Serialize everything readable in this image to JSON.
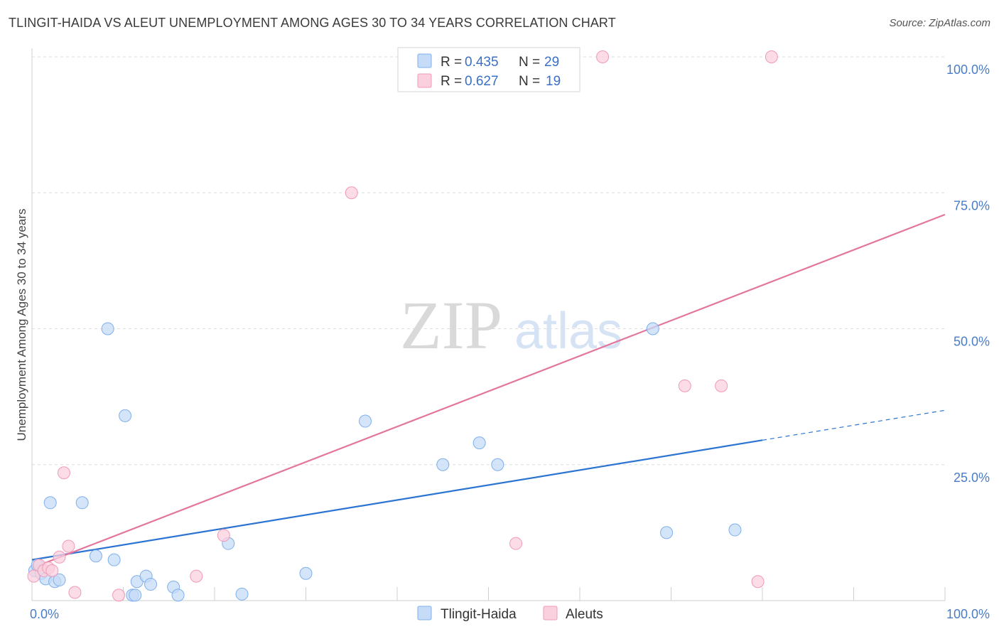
{
  "header": {
    "title": "TLINGIT-HAIDA VS ALEUT UNEMPLOYMENT AMONG AGES 30 TO 34 YEARS CORRELATION CHART",
    "source": "Source: ZipAtlas.com"
  },
  "watermark": {
    "zip": "ZIP",
    "atlas": "atlas"
  },
  "chart_data": {
    "type": "scatter",
    "title": "TLINGIT-HAIDA VS ALEUT UNEMPLOYMENT AMONG AGES 30 TO 34 YEARS CORRELATION CHART",
    "xlabel": "",
    "ylabel": "Unemployment Among Ages 30 to 34 years",
    "xlim": [
      0,
      100
    ],
    "ylim": [
      0,
      100
    ],
    "x_tick_labels": [
      {
        "value": 0,
        "label": "0.0%"
      },
      {
        "value": 100,
        "label": "100.0%"
      }
    ],
    "y_tick_labels": [
      {
        "value": 25,
        "label": "25.0%"
      },
      {
        "value": 50,
        "label": "50.0%"
      },
      {
        "value": 75,
        "label": "75.0%"
      },
      {
        "value": 100,
        "label": "100.0%"
      }
    ],
    "grid": true,
    "legend_position": "top-center",
    "series": [
      {
        "name": "Tlingit-Haida",
        "color": "#7fb0ea",
        "fill": "#c5dbf7",
        "line_color": "#2b74d1",
        "r_label": "R =",
        "r_value": "0.435",
        "n_label": "N =",
        "n_value": "29",
        "trend": {
          "x0": 0,
          "y0": 7.5,
          "x1": 80,
          "y1": 29.5,
          "dash_to_x": 100,
          "dash_to_y": 35
        },
        "points": [
          [
            0.3,
            5.5
          ],
          [
            0.6,
            6.5
          ],
          [
            1.0,
            5.0
          ],
          [
            1.5,
            4.0
          ],
          [
            2.0,
            18.0
          ],
          [
            2.5,
            3.5
          ],
          [
            3.0,
            3.8
          ],
          [
            5.5,
            18.0
          ],
          [
            7.0,
            8.2
          ],
          [
            8.3,
            50.0
          ],
          [
            9.0,
            7.5
          ],
          [
            10.2,
            34.0
          ],
          [
            11.0,
            1.0
          ],
          [
            11.3,
            1.0
          ],
          [
            11.5,
            3.5
          ],
          [
            12.5,
            4.5
          ],
          [
            13.0,
            3.0
          ],
          [
            15.5,
            2.5
          ],
          [
            16.0,
            1.0
          ],
          [
            21.5,
            10.5
          ],
          [
            23.0,
            1.2
          ],
          [
            30.0,
            5.0
          ],
          [
            36.5,
            33.0
          ],
          [
            45.0,
            25.0
          ],
          [
            49.0,
            29.0
          ],
          [
            51.0,
            25.0
          ],
          [
            68.0,
            50.0
          ],
          [
            69.5,
            12.5
          ],
          [
            77.0,
            13.0
          ]
        ]
      },
      {
        "name": "Aleuts",
        "color": "#f09ab6",
        "fill": "#fbd0de",
        "line_color": "#e3769d",
        "r_label": "R =",
        "r_value": "0.627",
        "n_label": "N =",
        "n_value": "19",
        "trend": {
          "x0": 0,
          "y0": 6.0,
          "x1": 100,
          "y1": 71.0
        },
        "points": [
          [
            0.2,
            4.5
          ],
          [
            0.8,
            6.5
          ],
          [
            1.3,
            5.5
          ],
          [
            1.8,
            6.0
          ],
          [
            2.2,
            5.5
          ],
          [
            3.0,
            8.0
          ],
          [
            3.5,
            23.5
          ],
          [
            4.0,
            10.0
          ],
          [
            4.7,
            1.5
          ],
          [
            9.5,
            1.0
          ],
          [
            18.0,
            4.5
          ],
          [
            21.0,
            12.0
          ],
          [
            35.0,
            75.0
          ],
          [
            53.0,
            10.5
          ],
          [
            62.5,
            100.0
          ],
          [
            71.5,
            39.5
          ],
          [
            75.5,
            39.5
          ],
          [
            81.0,
            100.0
          ],
          [
            79.5,
            3.5
          ]
        ]
      }
    ]
  }
}
